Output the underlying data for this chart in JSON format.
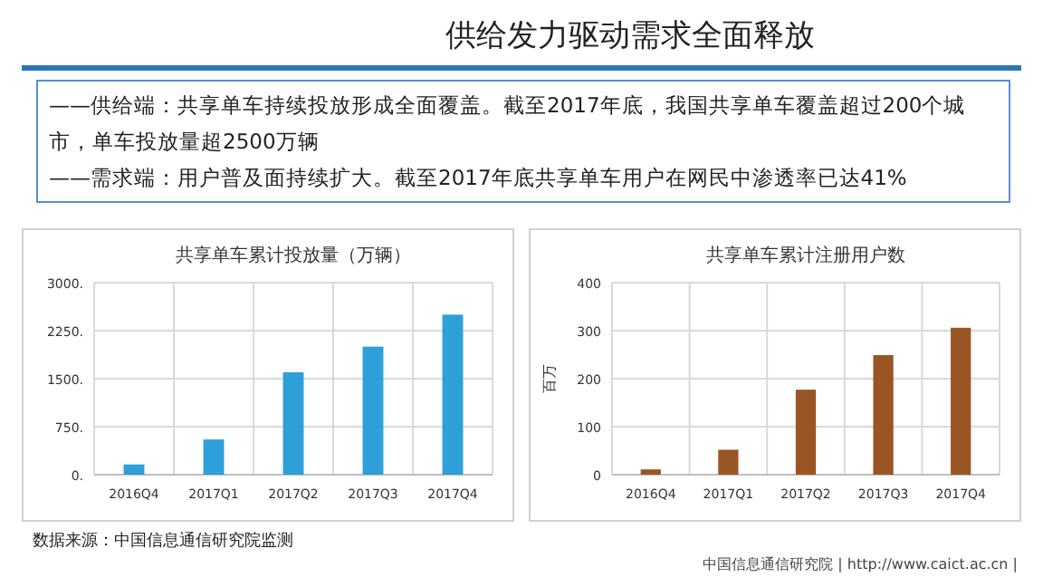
{
  "chart_data": [
    {
      "type": "other",
      "title": "供给发力驱动需求全面释放",
      "annotations": [
        "——供给端：共享单车持续投放形成全面覆盖。截至2017年底，我国共享单车覆盖超过200个城市，单车投放量超2500万辆",
        "——需求端：用户普及面持续扩大。截至2017年底共享单车用户在网民中渗透率已达41%",
        "数据来源：中国信息通信研究院监测",
        "中国信息通信研究院 | http://www.caict.ac.cn |"
      ]
    },
    {
      "type": "bar",
      "title": "共享单车累计投放量（万辆）",
      "categories": [
        "2016Q4",
        "2017Q1",
        "2017Q2",
        "2017Q3",
        "2017Q4"
      ],
      "values": [
        160,
        550,
        1600,
        2000,
        2500
      ],
      "color": "#2e9fd8",
      "ylim": [
        0,
        3000
      ],
      "yticks": [
        {
          "value": 0,
          "label": "0."
        },
        {
          "value": 750,
          "label": "750."
        },
        {
          "value": 1500,
          "label": "1500."
        },
        {
          "value": 2250,
          "label": "2250."
        },
        {
          "value": 3000,
          "label": "3000."
        }
      ],
      "grid": true
    },
    {
      "type": "bar",
      "title": "共享单车累计注册用户数",
      "ylabel": "百万",
      "categories": [
        "2016Q4",
        "2017Q1",
        "2017Q2",
        "2017Q3",
        "2017Q4"
      ],
      "values": [
        11,
        52,
        177,
        249,
        306
      ],
      "color": "#9a5524",
      "ylim": [
        0,
        400
      ],
      "yticks": [
        0,
        100,
        200,
        300,
        400
      ],
      "grid": true
    }
  ]
}
